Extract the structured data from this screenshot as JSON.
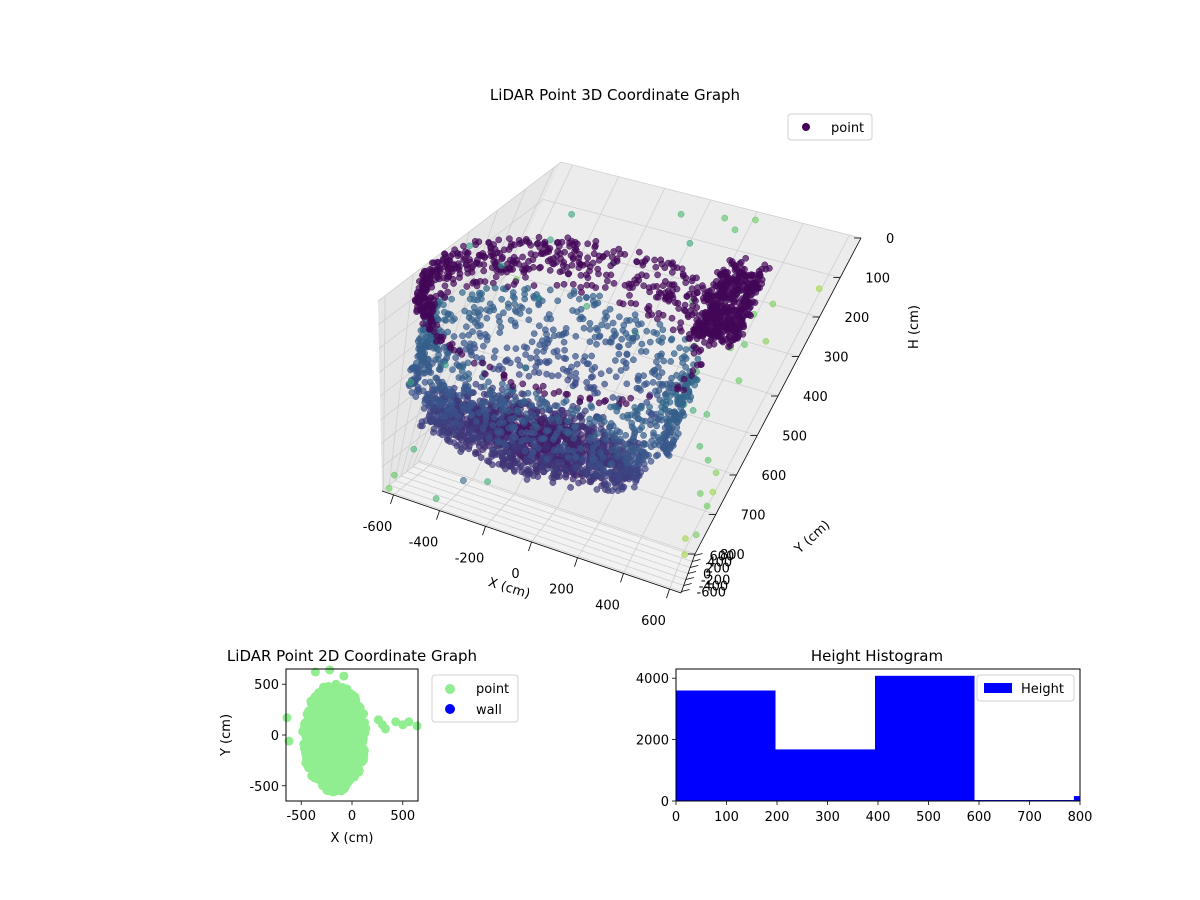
{
  "figure": {
    "background": "#ffffff"
  },
  "chart_data": [
    {
      "type": "scatter",
      "projection": "3d",
      "title": "LiDAR Point 3D Coordinate Graph",
      "xlabel": "X (cm)",
      "ylabel": "Y (cm)",
      "zlabel": "H (cm)",
      "xlim": [
        -650,
        650
      ],
      "ylim": [
        -650,
        650
      ],
      "zlim": [
        800,
        0
      ],
      "xticks": [
        "-600",
        "-400",
        "-200",
        "0",
        "200",
        "400",
        "600"
      ],
      "yticks": [
        "-600",
        "-400",
        "-200",
        "0",
        "200",
        "400",
        "600"
      ],
      "zticks": [
        "0",
        "100",
        "200",
        "300",
        "400",
        "500",
        "600",
        "700",
        "800"
      ],
      "grid": true,
      "legend": {
        "placement": "top-right",
        "entries": [
          "point"
        ]
      },
      "colormap": "viridis",
      "series_name": "point",
      "point_count_estimate": 9600,
      "structures": {
        "floor_disk": {
          "center": [
            -150,
            -30
          ],
          "radius": 480,
          "h_range": [
            500,
            600
          ]
        },
        "wall_ring": {
          "center": [
            -150,
            -30
          ],
          "radius": 560,
          "h_range": [
            200,
            480
          ]
        },
        "top_ring": {
          "center": [
            -150,
            -30
          ],
          "radius": 600,
          "h_range": [
            100,
            200
          ]
        },
        "dense_block": {
          "x_range": [
            250,
            430
          ],
          "y_range": [
            260,
            420
          ],
          "h_range": [
            20,
            220
          ]
        }
      },
      "outliers": [
        [
          -650,
          40,
          60
        ],
        [
          -640,
          -300,
          430
        ],
        [
          -620,
          -640,
          780
        ],
        [
          -600,
          -620,
          720
        ],
        [
          -560,
          200,
          150
        ],
        [
          -540,
          -520,
          610
        ],
        [
          -520,
          40,
          620
        ],
        [
          -480,
          420,
          120
        ],
        [
          -470,
          -420,
          280
        ],
        [
          -440,
          420,
          40
        ],
        [
          -420,
          -610,
          760
        ],
        [
          -400,
          300,
          240
        ],
        [
          -380,
          -80,
          740
        ],
        [
          -360,
          80,
          590
        ],
        [
          -330,
          240,
          420
        ],
        [
          -300,
          -120,
          580
        ],
        [
          -260,
          560,
          300
        ],
        [
          -220,
          500,
          160
        ],
        [
          -200,
          -620,
          610
        ],
        [
          -120,
          280,
          610
        ],
        [
          -80,
          620,
          40
        ],
        [
          -20,
          560,
          330
        ],
        [
          40,
          500,
          60
        ],
        [
          90,
          640,
          30
        ],
        [
          140,
          570,
          220
        ],
        [
          160,
          610,
          40
        ],
        [
          210,
          650,
          20
        ],
        [
          230,
          600,
          250
        ],
        [
          260,
          420,
          280
        ],
        [
          300,
          480,
          120
        ],
        [
          320,
          380,
          330
        ],
        [
          340,
          300,
          400
        ],
        [
          360,
          440,
          200
        ],
        [
          380,
          560,
          300
        ],
        [
          400,
          200,
          380
        ],
        [
          420,
          480,
          180
        ],
        [
          440,
          350,
          420
        ],
        [
          450,
          420,
          240
        ],
        [
          470,
          500,
          150
        ],
        [
          480,
          240,
          480
        ],
        [
          500,
          380,
          320
        ],
        [
          520,
          460,
          230
        ],
        [
          540,
          200,
          500
        ],
        [
          560,
          280,
          610
        ],
        [
          580,
          360,
          560
        ],
        [
          600,
          420,
          620
        ],
        [
          620,
          140,
          700
        ],
        [
          640,
          -600,
          560
        ],
        [
          600,
          600,
          120
        ],
        [
          650,
          -640,
          620
        ],
        [
          -600,
          620,
          300
        ],
        [
          620,
          80,
          600
        ]
      ]
    },
    {
      "type": "scatter",
      "title": "LiDAR Point 2D Coordinate Graph",
      "xlabel": "X (cm)",
      "ylabel": "Y (cm)",
      "xlim": [
        -650,
        650
      ],
      "ylim": [
        -650,
        650
      ],
      "xticks": [
        "-500",
        "0",
        "500"
      ],
      "yticks": [
        "-500",
        "0",
        "500"
      ],
      "grid": false,
      "legend": {
        "placement": "outside-right",
        "entries": [
          "point",
          "wall"
        ]
      },
      "series": [
        {
          "name": "point",
          "color": "#90ee90",
          "cluster": {
            "center": [
              -170,
              -30
            ],
            "radius_x": 310,
            "radius_y": 520
          },
          "outliers": [
            [
              -640,
              170
            ],
            [
              -620,
              -60
            ],
            [
              -360,
              620
            ],
            [
              -220,
              640
            ],
            [
              -80,
              580
            ],
            [
              260,
              150
            ],
            [
              300,
              100
            ],
            [
              330,
              60
            ],
            [
              430,
              130
            ],
            [
              500,
              100
            ],
            [
              560,
              130
            ],
            [
              640,
              90
            ]
          ]
        },
        {
          "name": "wall",
          "color": "#0000ff",
          "points": []
        }
      ]
    },
    {
      "type": "bar",
      "subtype": "histogram",
      "title": "Height Histogram",
      "xlim": [
        0,
        800
      ],
      "ylim": [
        0,
        4300
      ],
      "xticks": [
        "0",
        "100",
        "200",
        "300",
        "400",
        "500",
        "600",
        "700",
        "800"
      ],
      "yticks": [
        "0",
        "2000",
        "4000"
      ],
      "legend": {
        "placement": "top-right",
        "entries": [
          "Height"
        ]
      },
      "color": "#0000ff",
      "bins": [
        {
          "start": 0,
          "end": 197,
          "count": 3600
        },
        {
          "start": 197,
          "end": 394,
          "count": 1680
        },
        {
          "start": 394,
          "end": 591,
          "count": 4080
        },
        {
          "start": 591,
          "end": 788,
          "count": 15
        },
        {
          "start": 788,
          "end": 985,
          "count": 160
        }
      ]
    }
  ]
}
